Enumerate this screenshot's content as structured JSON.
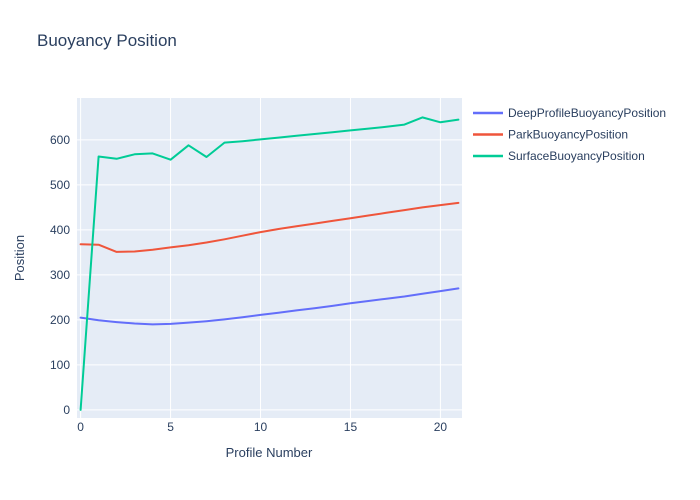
{
  "chart_data": {
    "type": "line",
    "title": "Buoyancy Position",
    "xlabel": "Profile Number",
    "ylabel": "Position",
    "x": [
      0,
      1,
      2,
      3,
      4,
      5,
      6,
      7,
      8,
      9,
      10,
      11,
      12,
      13,
      14,
      15,
      16,
      17,
      18,
      19,
      20,
      21
    ],
    "series": [
      {
        "name": "DeepProfileBuoyancyPosition",
        "color": "#636EFA",
        "values": [
          205,
          199,
          195,
          192,
          190,
          191,
          194,
          197,
          201,
          206,
          211,
          216,
          221,
          226,
          231,
          237,
          242,
          247,
          252,
          258,
          264,
          270
        ]
      },
      {
        "name": "ParkBuoyancyPosition",
        "color": "#EF553B",
        "values": [
          368,
          367,
          351,
          352,
          356,
          361,
          366,
          372,
          379,
          387,
          395,
          402,
          408,
          414,
          420,
          426,
          432,
          438,
          444,
          450,
          455,
          460
        ]
      },
      {
        "name": "SurfaceBuoyancyPosition",
        "color": "#00CC96",
        "values": [
          0,
          563,
          558,
          568,
          570,
          556,
          588,
          562,
          594,
          597,
          601,
          605,
          609,
          613,
          617,
          621,
          625,
          629,
          634,
          650,
          639,
          645
        ]
      }
    ],
    "x_ticks": [
      0,
      5,
      10,
      15,
      20
    ],
    "y_ticks": [
      0,
      100,
      200,
      300,
      400,
      500,
      600
    ],
    "xlim": [
      -0.2,
      21.2
    ],
    "ylim": [
      -18,
      693
    ],
    "grid": true,
    "legend_position": "right",
    "colors": {
      "paper_bg": "#FFFFFF",
      "plot_bg": "#E5ECF6",
      "grid": "#FFFFFF",
      "text": "#2A3F5F"
    }
  }
}
